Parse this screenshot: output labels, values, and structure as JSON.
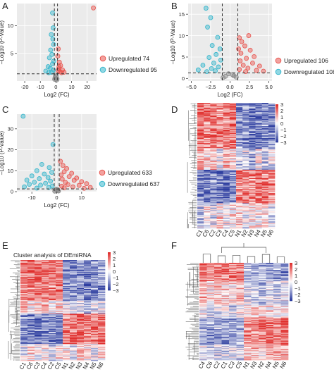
{
  "panels": {
    "A": {
      "letter": "A",
      "xlabel": "Log2 (FC)",
      "ylabel": "–Log10 (P-Value)",
      "xticks": [
        -20,
        -10,
        0,
        10,
        20
      ],
      "yticks": [
        5,
        10
      ],
      "legend": [
        "Upregulated 74",
        "Downregulated 95"
      ]
    },
    "B": {
      "letter": "B",
      "xlabel": "Log2 (FC)",
      "ylabel": "–Log10 (P-Value)",
      "xticks": [
        -5.0,
        -2.5,
        0.0,
        2.5,
        5.0
      ],
      "xtick_labels": [
        "−5.0",
        "−2.5",
        "0.0",
        "2.5",
        "5.0"
      ],
      "yticks": [
        0,
        5,
        10,
        15
      ],
      "legend": [
        "Upregulated 106",
        "Downregulated 108"
      ]
    },
    "C": {
      "letter": "C",
      "xlabel": "Log2 (FC)",
      "ylabel": "–Log10 (P-Value)",
      "xticks": [
        -10,
        0,
        10
      ],
      "yticks": [
        0,
        10,
        20,
        30
      ],
      "legend": [
        "Upregulated 633",
        "Downregulated 637"
      ]
    },
    "D": {
      "letter": "D",
      "samples": [
        "C1",
        "C6",
        "C2",
        "C3",
        "C4",
        "C5",
        "N1",
        "N2",
        "N3",
        "N4",
        "N5",
        "N6"
      ],
      "scale": [
        "3",
        "2",
        "1",
        "0",
        "−1",
        "−2",
        "−3"
      ]
    },
    "E": {
      "letter": "E",
      "title": "Cluster analysis of DEmiRNA",
      "samples": [
        "C1",
        "C6",
        "C3",
        "C4",
        "C2",
        "C5",
        "N1",
        "N2",
        "N3",
        "N4",
        "N5",
        "N6"
      ],
      "scale": [
        "3",
        "2",
        "1",
        "0",
        "−1",
        "−2",
        "−3"
      ]
    },
    "F": {
      "letter": "F",
      "samples": [
        "C4",
        "C6",
        "C2",
        "C1",
        "C3",
        "C5",
        "N1",
        "N3",
        "N2",
        "N4",
        "N5",
        "N6"
      ],
      "scale": [
        "3",
        "2",
        "1",
        "0",
        "−1",
        "−2",
        "−3"
      ]
    }
  },
  "colors": {
    "up": "#e8544e",
    "down": "#35b6cc",
    "ns": "#8a8a8a",
    "heat_high": "#e0302e",
    "heat_mid": "#ffffff",
    "heat_low": "#2f3fa0",
    "panel_bg": "#ebebeb"
  },
  "chart_data": [
    {
      "type": "scatter",
      "panel": "A",
      "xlabel": "Log2 (FC)",
      "ylabel": "–Log10 (P-Value)",
      "xlim": [
        -25,
        26
      ],
      "ylim": [
        0,
        14
      ],
      "thresholds": {
        "x": [
          -1,
          1
        ],
        "y": 1.3
      },
      "series": [
        {
          "name": "Upregulated 74",
          "points": [
            [
              24,
              13.2
            ],
            [
              1.5,
              5.8
            ],
            [
              1.2,
              4.5
            ],
            [
              2.2,
              3.4
            ],
            [
              3,
              2.8
            ],
            [
              1.8,
              2.2
            ],
            [
              4.2,
              2
            ],
            [
              2.6,
              1.7
            ],
            [
              1.4,
              1.9
            ],
            [
              3.5,
              1.5
            ],
            [
              5.2,
              1.6
            ],
            [
              2,
              2.6
            ]
          ]
        },
        {
          "name": "Downregulated 95",
          "points": [
            [
              -2.2,
              12.3
            ],
            [
              -1.8,
              9.6
            ],
            [
              -3,
              8.4
            ],
            [
              -2,
              7.6
            ],
            [
              -1.5,
              6.6
            ],
            [
              -3.4,
              5.6
            ],
            [
              -2.6,
              4.8
            ],
            [
              -4.2,
              4.2
            ],
            [
              -1.4,
              3.6
            ],
            [
              -2.2,
              3.1
            ],
            [
              -5,
              2.6
            ],
            [
              -3.6,
              2.3
            ],
            [
              -1.6,
              2
            ],
            [
              -6.5,
              1.8
            ],
            [
              -2.8,
              1.6
            ],
            [
              -4.6,
              1.5
            ]
          ]
        },
        {
          "name": "Not significant",
          "points": [
            [
              -0.6,
              0.6
            ],
            [
              0.2,
              0.9
            ],
            [
              0.7,
              0.4
            ],
            [
              -0.3,
              1.1
            ],
            [
              0.5,
              0.2
            ],
            [
              -0.8,
              0.3
            ]
          ]
        }
      ]
    },
    {
      "type": "scatter",
      "panel": "B",
      "xlabel": "Log2 (FC)",
      "ylabel": "–Log10 (P-Value)",
      "xlim": [
        -5.4,
        5.4
      ],
      "ylim": [
        -0.6,
        17.5
      ],
      "thresholds": {
        "x": [
          -1,
          1
        ],
        "y": 1.3
      },
      "series": [
        {
          "name": "Upregulated 106",
          "points": [
            [
              2.4,
              10
            ],
            [
              1.2,
              9.5
            ],
            [
              1.5,
              8.6
            ],
            [
              1.9,
              7.6
            ],
            [
              1.1,
              6.9
            ],
            [
              2.6,
              6.6
            ],
            [
              1.4,
              5.9
            ],
            [
              3.1,
              5.1
            ],
            [
              2.1,
              4.7
            ],
            [
              1.3,
              4.1
            ],
            [
              2.9,
              3.6
            ],
            [
              1.7,
              3.1
            ],
            [
              3.8,
              2.9
            ],
            [
              2.3,
              2.4
            ],
            [
              1.2,
              2.1
            ],
            [
              3.4,
              1.9
            ],
            [
              4.3,
              1.7
            ],
            [
              2,
              1.6
            ]
          ]
        },
        {
          "name": "Downregulated 108",
          "points": [
            [
              -3.1,
              16.4
            ],
            [
              -2.5,
              14.2
            ],
            [
              -2.9,
              12
            ],
            [
              -1.6,
              9.6
            ],
            [
              -2.3,
              7.7
            ],
            [
              -1.3,
              6.9
            ],
            [
              -1.8,
              5.6
            ],
            [
              -2.7,
              4.9
            ],
            [
              -1.2,
              4.3
            ],
            [
              -2.1,
              3.6
            ],
            [
              -3.5,
              3.1
            ],
            [
              -1.5,
              2.7
            ],
            [
              -2.4,
              2.3
            ],
            [
              -4.1,
              2
            ],
            [
              -1.9,
              1.8
            ],
            [
              -3,
              1.6
            ]
          ]
        },
        {
          "name": "Not significant",
          "points": [
            [
              -0.6,
              0.5
            ],
            [
              0.3,
              0.9
            ],
            [
              0.8,
              0.3
            ],
            [
              -0.2,
              1.1
            ],
            [
              0.5,
              0.6
            ],
            [
              -0.9,
              0.2
            ]
          ]
        }
      ]
    },
    {
      "type": "scatter",
      "panel": "C",
      "xlabel": "Log2 (FC)",
      "ylabel": "–Log10 (P-Value)",
      "xlim": [
        -16,
        16
      ],
      "ylim": [
        0,
        37
      ],
      "thresholds": {
        "x": [
          -1,
          1
        ],
        "y": 1.3
      },
      "series": [
        {
          "name": "Upregulated 633",
          "points": [
            [
              1.5,
              14.5
            ],
            [
              2.5,
              12.5
            ],
            [
              4,
              11
            ],
            [
              3,
              9.5
            ],
            [
              6,
              8.8
            ],
            [
              1.8,
              8
            ],
            [
              5,
              7.2
            ],
            [
              8,
              6.5
            ],
            [
              2.2,
              6
            ],
            [
              7,
              5.4
            ],
            [
              10,
              4.8
            ],
            [
              3.5,
              4.4
            ],
            [
              12,
              3.8
            ],
            [
              4.5,
              3.4
            ],
            [
              9,
              3
            ],
            [
              2,
              2.6
            ],
            [
              6.5,
              2.3
            ],
            [
              13.5,
              2
            ],
            [
              3,
              1.8
            ],
            [
              11,
              1.6
            ]
          ]
        },
        {
          "name": "Downregulated 637",
          "points": [
            [
              -13.5,
              36
            ],
            [
              -1.5,
              22.5
            ],
            [
              -6,
              13
            ],
            [
              -3,
              11.5
            ],
            [
              -8,
              10
            ],
            [
              -2,
              9.2
            ],
            [
              -5,
              8.4
            ],
            [
              -10,
              7.5
            ],
            [
              -3.5,
              6.8
            ],
            [
              -7,
              6.2
            ],
            [
              -12,
              5.5
            ],
            [
              -2.5,
              5
            ],
            [
              -9,
              4.5
            ],
            [
              -4.5,
              4
            ],
            [
              -11,
              3.5
            ],
            [
              -6.5,
              3.1
            ],
            [
              -1.8,
              2.7
            ],
            [
              -13,
              2.3
            ],
            [
              -3.2,
              2
            ],
            [
              -8,
              1.7
            ]
          ]
        },
        {
          "name": "Not significant",
          "points": [
            [
              -0.5,
              0.6
            ],
            [
              0.3,
              1
            ],
            [
              0.7,
              0.3
            ],
            [
              -0.2,
              1.2
            ],
            [
              0.5,
              0.5
            ],
            [
              -0.8,
              0.2
            ]
          ]
        }
      ]
    },
    {
      "type": "heatmap",
      "panel": "D",
      "columns": [
        "C1",
        "C6",
        "C2",
        "C3",
        "C4",
        "C5",
        "N1",
        "N2",
        "N3",
        "N4",
        "N5",
        "N6"
      ],
      "row_blocks": [
        {
          "rows": 55,
          "pattern": [
            1.2,
            1.0,
            1.1,
            0.9,
            1.0,
            1.1,
            -0.8,
            -0.9,
            -1.1,
            -1.0,
            -0.9,
            -1.0
          ]
        },
        {
          "rows": 25,
          "pattern": [
            0.6,
            0.3,
            0.4,
            -0.2,
            0.5,
            0.2,
            -0.5,
            -0.3,
            -0.6,
            0.1,
            -0.4,
            -0.2
          ]
        },
        {
          "rows": 40,
          "pattern": [
            -1.0,
            -1.1,
            -0.9,
            -1.0,
            -1.2,
            -0.9,
            1.0,
            1.1,
            0.9,
            1.2,
            1.0,
            0.9
          ]
        },
        {
          "rows": 30,
          "pattern": [
            -0.4,
            0.2,
            -0.3,
            0.3,
            -0.1,
            0.1,
            0.4,
            -0.2,
            0.3,
            0.0,
            0.2,
            -0.3
          ]
        }
      ],
      "scale_range": [
        -3,
        3
      ]
    },
    {
      "type": "heatmap",
      "panel": "E",
      "title": "Cluster analysis of DEmiRNA",
      "columns": [
        "C1",
        "C6",
        "C3",
        "C4",
        "C2",
        "C5",
        "N1",
        "N2",
        "N3",
        "N4",
        "N5",
        "N6"
      ],
      "row_blocks": [
        {
          "rows": 60,
          "pattern": [
            1.1,
            1.0,
            1.2,
            0.9,
            1.0,
            1.1,
            -0.9,
            -1.0,
            -0.9,
            -1.1,
            -1.0,
            -0.8
          ]
        },
        {
          "rows": 20,
          "pattern": [
            0.4,
            0.2,
            0.3,
            0.5,
            0.1,
            0.3,
            -0.3,
            -0.4,
            -0.2,
            -0.5,
            -0.1,
            -0.3
          ]
        },
        {
          "rows": 45,
          "pattern": [
            -0.9,
            -1.0,
            -1.1,
            -0.9,
            -1.0,
            -1.2,
            1.0,
            1.2,
            1.1,
            0.9,
            1.0,
            1.1
          ]
        },
        {
          "rows": 25,
          "pattern": [
            -0.2,
            0.3,
            -0.1,
            0.2,
            -0.3,
            0.1,
            0.3,
            -0.2,
            0.4,
            0.1,
            -0.1,
            0.2
          ]
        }
      ],
      "scale_range": [
        -3,
        3
      ]
    },
    {
      "type": "heatmap",
      "panel": "F",
      "columns": [
        "C4",
        "C6",
        "C2",
        "C1",
        "C3",
        "C5",
        "N1",
        "N3",
        "N2",
        "N4",
        "N5",
        "N6"
      ],
      "row_blocks": [
        {
          "rows": 30,
          "pattern": [
            1.2,
            0.8,
            0.9,
            1.0,
            0.9,
            1.1,
            -0.6,
            -0.8,
            -0.7,
            -0.9,
            -0.8,
            -0.9
          ]
        },
        {
          "rows": 40,
          "pattern": [
            0.6,
            0.2,
            0.4,
            0.3,
            0.2,
            0.5,
            -0.3,
            -0.4,
            -0.5,
            -0.2,
            -0.4,
            -0.3
          ]
        },
        {
          "rows": 20,
          "pattern": [
            0.0,
            -0.3,
            -0.2,
            0.1,
            -0.4,
            -0.1,
            0.2,
            0.4,
            0.3,
            0.1,
            0.2,
            0.3
          ]
        },
        {
          "rows": 45,
          "pattern": [
            -0.6,
            -0.8,
            -0.7,
            -0.9,
            -0.8,
            -0.7,
            0.8,
            0.9,
            1.0,
            1.1,
            0.9,
            1.2
          ]
        },
        {
          "rows": 25,
          "pattern": [
            -0.2,
            -0.5,
            -0.3,
            -0.4,
            -0.2,
            -0.4,
            0.4,
            0.5,
            0.3,
            0.6,
            0.4,
            0.5
          ]
        }
      ],
      "scale_range": [
        -3,
        3
      ]
    }
  ]
}
